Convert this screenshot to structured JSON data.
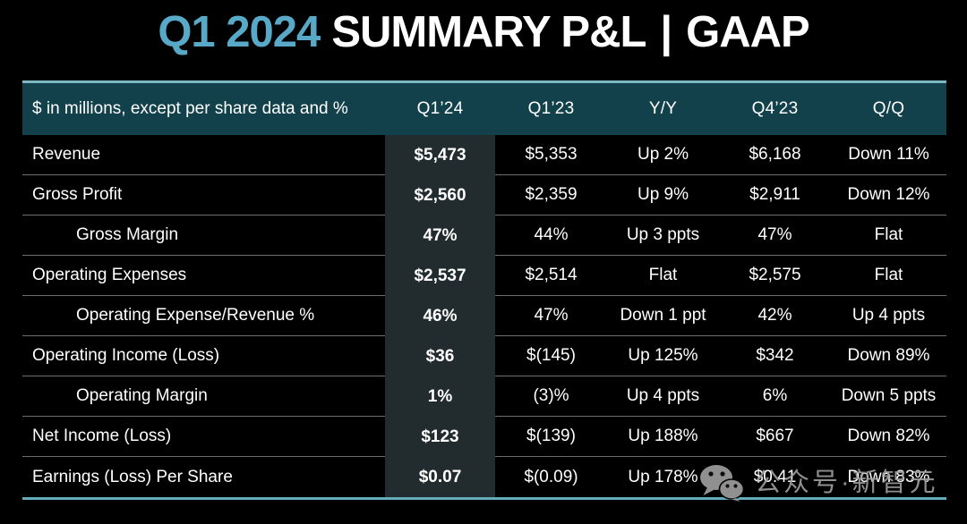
{
  "title": {
    "accent": "Q1 2024",
    "main": "SUMMARY P&L",
    "divider": "|",
    "suffix": "GAAP"
  },
  "chart_data": {
    "type": "table",
    "title": "Q1 2024 SUMMARY P&L | GAAP",
    "unit_note": "$ in millions, except per share data and %",
    "columns": [
      "$ in millions, except per share data and %",
      "Q1’24",
      "Q1’23",
      "Y/Y",
      "Q4’23",
      "Q/Q"
    ],
    "highlight_column": "Q1’24",
    "rows": [
      {
        "label": "Revenue",
        "indent": false,
        "values": [
          "$5,473",
          "$5,353",
          "Up 2%",
          "$6,168",
          "Down 11%"
        ]
      },
      {
        "label": "Gross Profit",
        "indent": false,
        "values": [
          "$2,560",
          "$2,359",
          "Up 9%",
          "$2,911",
          "Down 12%"
        ]
      },
      {
        "label": "Gross Margin",
        "indent": true,
        "values": [
          "47%",
          "44%",
          "Up 3 ppts",
          "47%",
          "Flat"
        ]
      },
      {
        "label": "Operating Expenses",
        "indent": false,
        "values": [
          "$2,537",
          "$2,514",
          "Flat",
          "$2,575",
          "Flat"
        ]
      },
      {
        "label": "Operating Expense/Revenue %",
        "indent": true,
        "values": [
          "46%",
          "47%",
          "Down 1 ppt",
          "42%",
          "Up 4 ppts"
        ]
      },
      {
        "label": "Operating Income (Loss)",
        "indent": false,
        "values": [
          "$36",
          "$(145)",
          "Up 125%",
          "$342",
          "Down 89%"
        ]
      },
      {
        "label": "Operating Margin",
        "indent": true,
        "values": [
          "1%",
          "(3)%",
          "Up 4 ppts",
          "6%",
          "Down 5 ppts"
        ]
      },
      {
        "label": "Net Income (Loss)",
        "indent": false,
        "values": [
          "$123",
          "$(139)",
          "Up 188%",
          "$667",
          "Down 82%"
        ]
      },
      {
        "label": "Earnings (Loss) Per Share",
        "indent": false,
        "values": [
          "$0.07",
          "$(0.09)",
          "Up 178%",
          "$0.41",
          "Down 83%"
        ]
      }
    ]
  },
  "watermark": {
    "icon": "wechat-icon",
    "text": "公众号·新智元"
  },
  "colors": {
    "background": "#000000",
    "title_accent": "#58a9c7",
    "header_bg": "#12414c",
    "header_top_border": "#7fb7c4",
    "bottom_border": "#63acba",
    "row_divider": "#6e6e6e",
    "highlight_column_bg": "#222b2e",
    "text": "#ffffff",
    "watermark_gray": "#9d9d9d"
  }
}
